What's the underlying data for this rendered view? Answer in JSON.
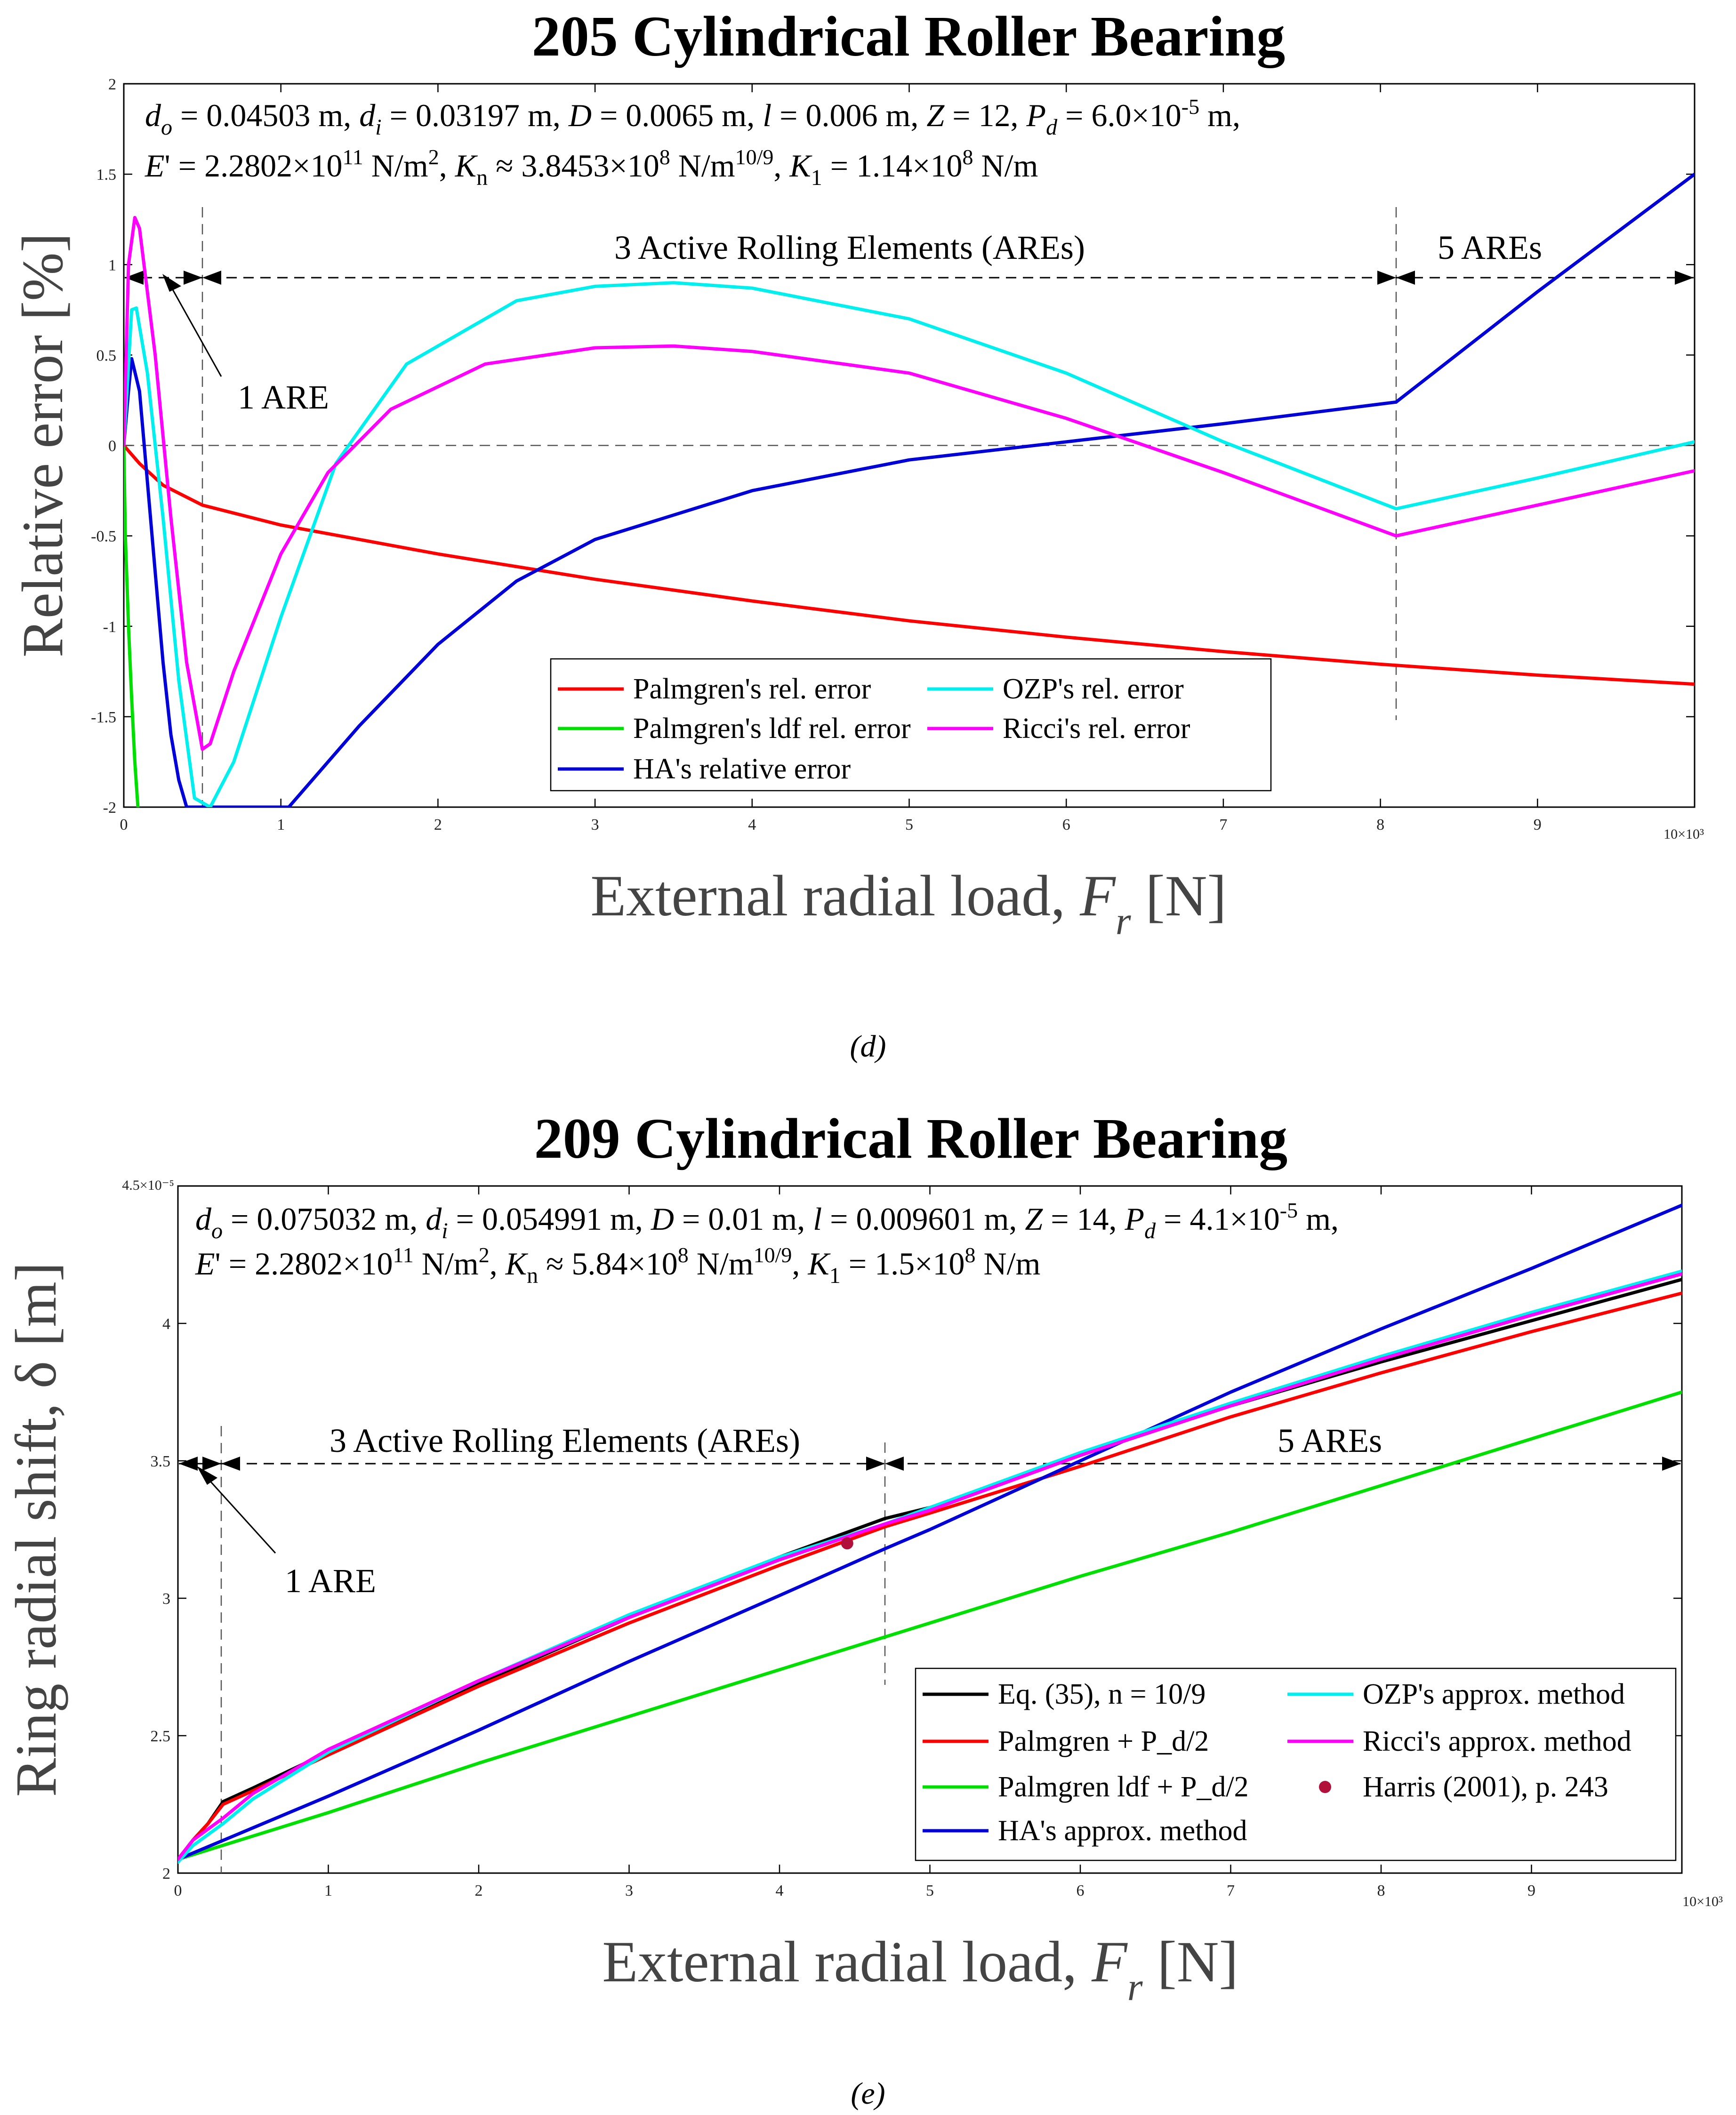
{
  "chart_data": [
    {
      "type": "line",
      "title": "205 Cylindrical Roller Bearing",
      "caption": "(d)",
      "xlabel": "External radial load, F_r  [N]",
      "xlabel_main": "External radial load, ",
      "xlabel_var": "F",
      "xlabel_sub": "r",
      "xlabel_unit": "[N]",
      "ylabel": "Relative error [%]",
      "xlim": [
        0,
        10
      ],
      "ylim": [
        -2,
        2
      ],
      "x_multiplier": "10×10³",
      "x_ticks": [
        "0",
        "1",
        "2",
        "3",
        "4",
        "5",
        "6",
        "7",
        "8",
        "9"
      ],
      "y_ticks": [
        "-2",
        "-1.5",
        "-1",
        "-0.5",
        "0",
        "0.5",
        "1",
        "1.5",
        "2"
      ],
      "params_line1": "d_o = 0.04503 m, d_i = 0.03197 m, D = 0.0065 m, l = 0.006 m, Z = 12, P_d = 6.0×10^-5 m,",
      "params_line2": "E' = 2.2802×10^11 N/m^2, K_n ≈ 3.8453×10^8 N/m^10/9, K_1 = 1.14×10^8 N/m",
      "annotations": {
        "are3": "3 Active Rolling Elements (AREs)",
        "are5": "5 AREs",
        "are1": "1 ARE"
      },
      "series": [
        {
          "name": "Palmgren's rel. error",
          "color": "#ff0000",
          "x": [
            0,
            0.1,
            0.25,
            0.5,
            1,
            1.5,
            2,
            3,
            4,
            5,
            6,
            7,
            8,
            9,
            10
          ],
          "values": [
            0,
            -0.1,
            -0.22,
            -0.33,
            -0.44,
            -0.52,
            -0.6,
            -0.74,
            -0.86,
            -0.97,
            -1.06,
            -1.14,
            -1.21,
            -1.27,
            -1.32
          ]
        },
        {
          "name": "Palmgren's ldf rel. error",
          "color": "#00e000",
          "x": [
            0,
            0.01,
            0.03,
            0.05,
            0.07,
            0.09
          ],
          "values": [
            0,
            -0.5,
            -1.0,
            -1.4,
            -1.75,
            -2.0
          ]
        },
        {
          "name": "HA's relative error",
          "color": "#0000d8",
          "x": [
            0,
            0.03,
            0.05,
            0.1,
            0.15,
            0.2,
            0.25,
            0.3,
            0.35,
            0.4,
            1.05,
            1.5,
            2,
            2.5,
            3,
            4,
            5,
            6,
            7,
            8.1,
            9,
            10
          ],
          "values": [
            0,
            0.3,
            0.48,
            0.3,
            -0.2,
            -0.7,
            -1.2,
            -1.6,
            -1.85,
            -2.0,
            -2.0,
            -1.55,
            -1.1,
            -0.75,
            -0.52,
            -0.25,
            -0.08,
            0.02,
            0.12,
            0.24,
            0.85,
            1.5
          ]
        },
        {
          "name": "OZP's rel. error",
          "color": "#00f0f0",
          "x": [
            0,
            0.05,
            0.08,
            0.15,
            0.25,
            0.35,
            0.45,
            0.55,
            0.7,
            1.0,
            1.35,
            1.8,
            2.5,
            3.0,
            3.5,
            4.0,
            5.0,
            6.0,
            7.0,
            8.1,
            9,
            10
          ],
          "values": [
            0,
            0.75,
            0.76,
            0.4,
            -0.4,
            -1.3,
            -1.95,
            -2.0,
            -1.75,
            -0.95,
            -0.1,
            0.45,
            0.8,
            0.88,
            0.9,
            0.87,
            0.7,
            0.4,
            0.02,
            -0.35,
            -0.18,
            0.02
          ]
        },
        {
          "name": "Ricci's rel. error",
          "color": "#ff00ff",
          "x": [
            0,
            0.03,
            0.07,
            0.1,
            0.2,
            0.3,
            0.4,
            0.5,
            0.55,
            0.7,
            1.0,
            1.3,
            1.7,
            2.3,
            3.0,
            3.5,
            4.0,
            5.0,
            6.0,
            7.0,
            8.1,
            9,
            10
          ],
          "values": [
            0,
            1.0,
            1.26,
            1.2,
            0.5,
            -0.4,
            -1.2,
            -1.68,
            -1.65,
            -1.25,
            -0.6,
            -0.15,
            0.2,
            0.45,
            0.54,
            0.55,
            0.52,
            0.4,
            0.15,
            -0.15,
            -0.5,
            -0.33,
            -0.14
          ]
        }
      ]
    },
    {
      "type": "line",
      "title": "209 Cylindrical Roller Bearing",
      "caption": "(e)",
      "xlabel": "External radial load, F_r  [N]",
      "xlabel_main": "External radial load, ",
      "xlabel_var": "F",
      "xlabel_sub": "r",
      "xlabel_unit": "[N]",
      "ylabel": "Ring radial shift, δ [m]",
      "xlim": [
        0,
        10
      ],
      "ylim": [
        2,
        4.5
      ],
      "x_multiplier": "10×10³",
      "y_multiplier": "4.5×10⁻⁵",
      "x_ticks": [
        "0",
        "1",
        "2",
        "3",
        "4",
        "5",
        "6",
        "7",
        "8",
        "9"
      ],
      "y_ticks": [
        "2",
        "2.5",
        "3",
        "3.5",
        "4"
      ],
      "params_line1": "d_o = 0.075032 m, d_i = 0.054991 m, D = 0.01 m, l = 0.009601 m, Z = 14, P_d = 4.1×10^-5 m,",
      "params_line2": "E' = 2.2802×10^11 N/m^2, K_n ≈ 5.84×10^8 N/m^10/9, K_1 = 1.5×10^8 N/m",
      "annotations": {
        "are3": "3 Active Rolling Elements (AREs)",
        "are5": "5 AREs",
        "are1": "1 ARE"
      },
      "series": [
        {
          "name": "Eq. (35), n = 10/9",
          "color": "#000000",
          "x": [
            0,
            0.1,
            0.2,
            0.3,
            0.5,
            1,
            2,
            3,
            4,
            4.7,
            5,
            6,
            7,
            8,
            9,
            10
          ],
          "values": [
            2.05,
            2.12,
            2.18,
            2.26,
            2.31,
            2.44,
            2.69,
            2.93,
            3.15,
            3.29,
            3.33,
            3.52,
            3.7,
            3.86,
            4.01,
            4.16
          ]
        },
        {
          "name": "Palmgren + P_d/2",
          "color": "#ff0000",
          "x": [
            0,
            0.1,
            0.2,
            0.3,
            0.5,
            1,
            2,
            3,
            4,
            4.7,
            5,
            6,
            7,
            8,
            9,
            10
          ],
          "values": [
            2.05,
            2.12,
            2.18,
            2.25,
            2.3,
            2.43,
            2.68,
            2.91,
            3.12,
            3.26,
            3.31,
            3.48,
            3.66,
            3.82,
            3.97,
            4.11
          ]
        },
        {
          "name": "Palmgren ldf + P_d/2",
          "color": "#00e000",
          "x": [
            0,
            1,
            2,
            3,
            4,
            5,
            6,
            7,
            8,
            9,
            10
          ],
          "values": [
            2.05,
            2.22,
            2.4,
            2.57,
            2.74,
            2.91,
            3.08,
            3.24,
            3.41,
            3.58,
            3.75
          ]
        },
        {
          "name": "HA's approx. method",
          "color": "#0000d8",
          "x": [
            0,
            1,
            2,
            3,
            4,
            4.7,
            5,
            6,
            7,
            8,
            9,
            10
          ],
          "values": [
            2.05,
            2.28,
            2.52,
            2.77,
            3.01,
            3.18,
            3.25,
            3.5,
            3.75,
            3.98,
            4.2,
            4.43
          ]
        },
        {
          "name": "OZP's approx. method",
          "color": "#00f0f0",
          "x": [
            0,
            0.1,
            0.3,
            0.5,
            1,
            2,
            3,
            4,
            4.7,
            5,
            6,
            7,
            8,
            9,
            10
          ],
          "values": [
            2.04,
            2.1,
            2.18,
            2.27,
            2.44,
            2.7,
            2.94,
            3.15,
            3.27,
            3.33,
            3.53,
            3.71,
            3.88,
            4.04,
            4.19
          ]
        },
        {
          "name": "Ricci's approx. method",
          "color": "#ff00ff",
          "x": [
            0,
            0.1,
            0.3,
            0.5,
            1,
            2,
            3,
            4,
            4.7,
            5,
            6,
            7,
            8,
            9,
            10
          ],
          "values": [
            2.05,
            2.12,
            2.2,
            2.29,
            2.45,
            2.7,
            2.93,
            3.14,
            3.27,
            3.32,
            3.52,
            3.7,
            3.87,
            4.03,
            4.18
          ]
        },
        {
          "name": "Harris (2001), p. 243",
          "color": "#b0103a",
          "marker": "o",
          "x": [
            4.45
          ],
          "values": [
            3.2
          ]
        }
      ]
    }
  ]
}
